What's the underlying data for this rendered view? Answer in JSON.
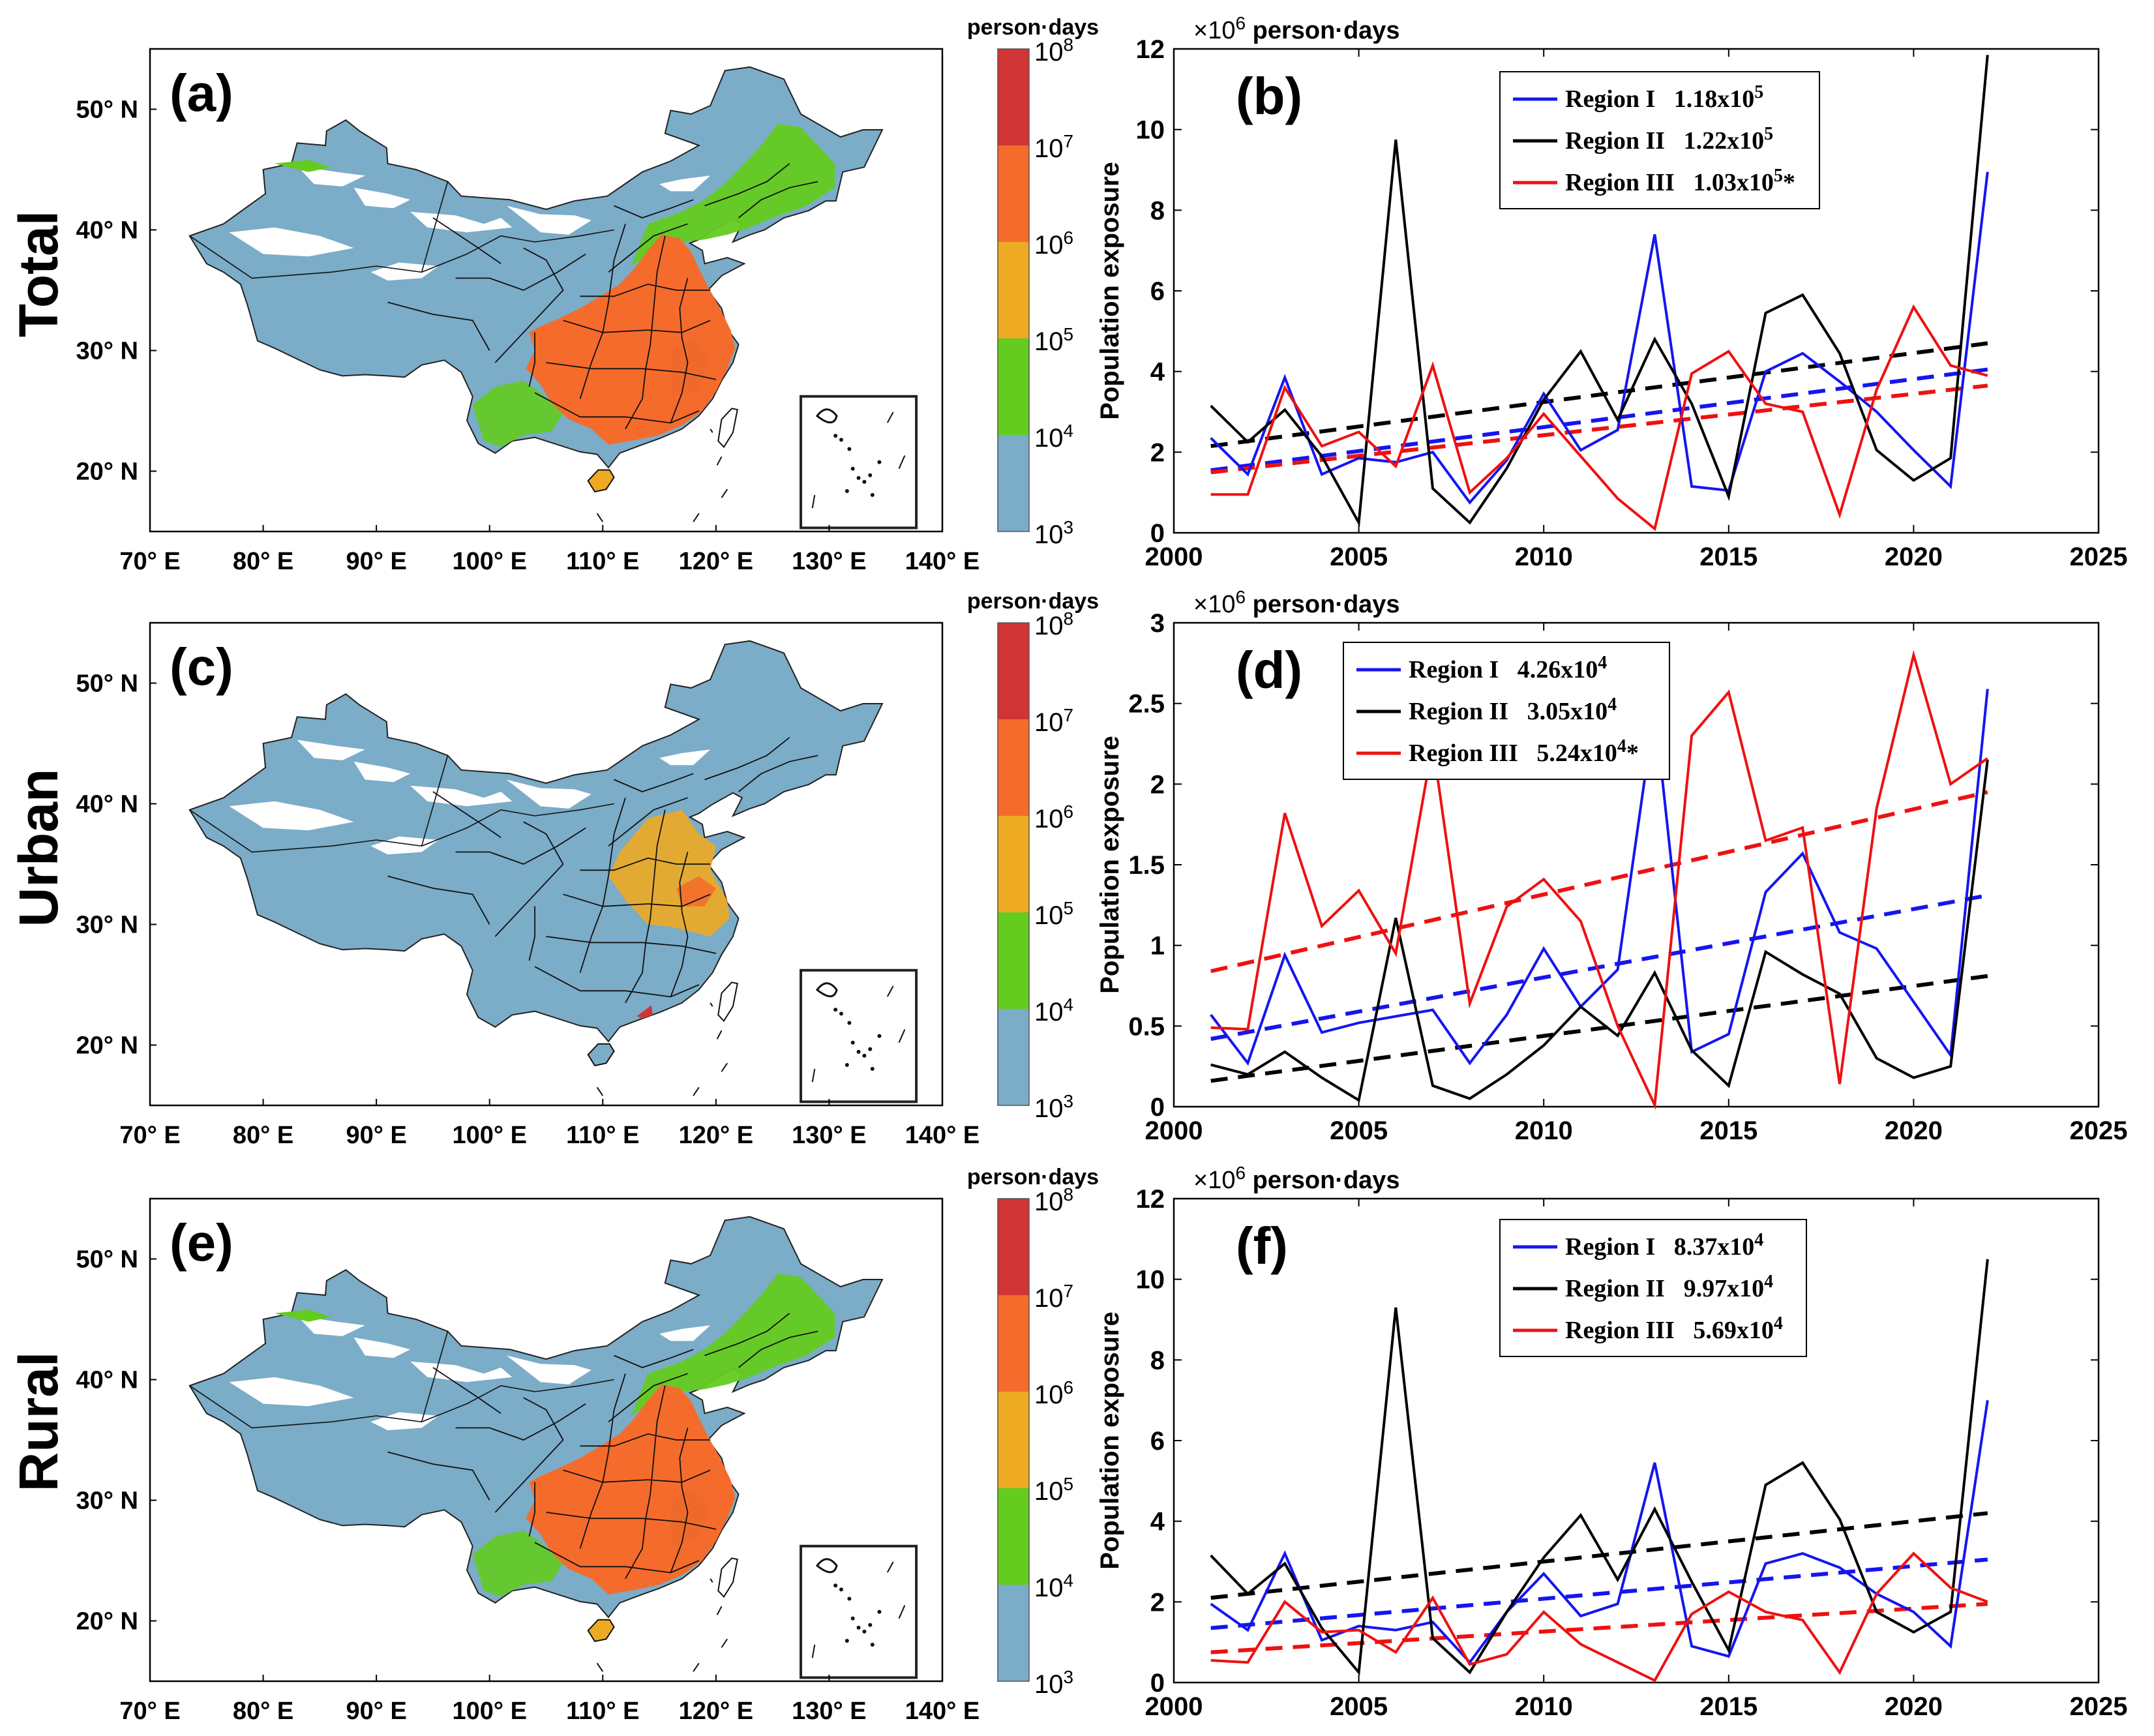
{
  "row_labels": [
    "Total",
    "Urban",
    "Rural"
  ],
  "panel_labels": [
    "(a)",
    "(b)",
    "(c)",
    "(d)",
    "(e)",
    "(f)"
  ],
  "map": {
    "lon_ticks": [
      "70° E",
      "80° E",
      "90° E",
      "100° E",
      "110° E",
      "120° E",
      "130° E",
      "140° E"
    ],
    "lat_ticks": [
      "20° N",
      "30° N",
      "40° N",
      "50° N"
    ],
    "colorbar_title": "person·days",
    "colorbar_exponents": [
      "3",
      "4",
      "5",
      "6",
      "7",
      "8"
    ],
    "colorbar_base": "10",
    "colorbar_colors": [
      "#7bacc8",
      "#64cb1f",
      "#eeaa22",
      "#f56b2b",
      "#d13434"
    ],
    "ocean_inset_label": "South China Sea inset"
  },
  "chart_data": [
    {
      "panel": "(b)",
      "type": "line",
      "ylabel": "Population exposure",
      "multiplier_text": "×10",
      "multiplier_exp": "6",
      "unit_text": "person·days",
      "xlim": [
        2000,
        2025
      ],
      "ylim": [
        0,
        12
      ],
      "xticks": [
        2000,
        2005,
        2010,
        2015,
        2020,
        2025
      ],
      "yticks": [
        0,
        2,
        4,
        6,
        8,
        10,
        12
      ],
      "x": [
        2001,
        2002,
        2003,
        2004,
        2005,
        2006,
        2007,
        2008,
        2009,
        2010,
        2011,
        2012,
        2013,
        2014,
        2015,
        2016,
        2017,
        2018,
        2019,
        2020,
        2021,
        2022
      ],
      "series": [
        {
          "name": "Region I",
          "color": "#1515f0",
          "trend_label": "1.18x10",
          "trend_exp": "5",
          "suffix": "",
          "values": [
            2.35,
            1.45,
            3.85,
            1.45,
            1.85,
            1.75,
            2.0,
            0.75,
            1.8,
            3.45,
            2.05,
            2.55,
            7.4,
            1.15,
            1.05,
            4.0,
            4.45,
            3.75,
            3.0,
            2.05,
            1.15,
            8.95
          ],
          "trend": [
            1.55,
            4.05
          ]
        },
        {
          "name": "Region II",
          "color": "#000000",
          "trend_label": "1.22x10",
          "trend_exp": "5",
          "suffix": "",
          "values": [
            3.15,
            2.25,
            3.05,
            1.9,
            0.25,
            9.75,
            1.1,
            0.25,
            1.6,
            3.3,
            4.5,
            2.8,
            4.8,
            3.2,
            0.9,
            5.45,
            5.9,
            4.45,
            2.05,
            1.3,
            1.85,
            11.85
          ],
          "trend": [
            2.15,
            4.7
          ]
        },
        {
          "name": "Region III",
          "color": "#ee1111",
          "trend_label": "1.03x10",
          "trend_exp": "5",
          "suffix": "*",
          "values": [
            0.95,
            0.95,
            3.6,
            2.15,
            2.5,
            1.65,
            4.15,
            1.0,
            1.85,
            2.95,
            1.9,
            0.85,
            0.1,
            3.95,
            4.5,
            3.2,
            3.0,
            0.45,
            3.55,
            5.6,
            4.15,
            3.9
          ],
          "trend": [
            1.5,
            3.65
          ]
        }
      ]
    },
    {
      "panel": "(d)",
      "type": "line",
      "ylabel": "Population exposure",
      "multiplier_text": "×10",
      "multiplier_exp": "6",
      "unit_text": "person·days",
      "xlim": [
        2000,
        2025
      ],
      "ylim": [
        0,
        3
      ],
      "xticks": [
        2000,
        2005,
        2010,
        2015,
        2020,
        2025
      ],
      "yticks": [
        0,
        0.5,
        1,
        1.5,
        2,
        2.5,
        3
      ],
      "x": [
        2001,
        2002,
        2003,
        2004,
        2005,
        2006,
        2007,
        2008,
        2009,
        2010,
        2011,
        2012,
        2013,
        2014,
        2015,
        2016,
        2017,
        2018,
        2019,
        2020,
        2021,
        2022
      ],
      "series": [
        {
          "name": "Region I",
          "color": "#1515f0",
          "trend_label": "4.26x10",
          "trend_exp": "4",
          "suffix": "",
          "values": [
            0.57,
            0.27,
            0.94,
            0.46,
            0.52,
            0.56,
            0.6,
            0.27,
            0.57,
            0.98,
            0.62,
            0.85,
            2.47,
            0.34,
            0.45,
            1.33,
            1.57,
            1.08,
            0.98,
            0.65,
            0.32,
            2.59
          ],
          "trend": [
            0.42,
            1.31
          ]
        },
        {
          "name": "Region II",
          "color": "#000000",
          "trend_label": "3.05x10",
          "trend_exp": "4",
          "suffix": "",
          "values": [
            0.26,
            0.2,
            0.34,
            0.18,
            0.04,
            1.17,
            0.13,
            0.05,
            0.2,
            0.38,
            0.62,
            0.44,
            0.83,
            0.35,
            0.13,
            0.96,
            0.82,
            0.7,
            0.3,
            0.18,
            0.25,
            2.15
          ],
          "trend": [
            0.16,
            0.81
          ]
        },
        {
          "name": "Region III",
          "color": "#ee1111",
          "trend_label": "5.24x10",
          "trend_exp": "4",
          "suffix": "*",
          "values": [
            0.49,
            0.48,
            1.82,
            1.12,
            1.34,
            0.95,
            2.25,
            0.64,
            1.24,
            1.41,
            1.15,
            0.5,
            0.01,
            2.3,
            2.57,
            1.65,
            1.73,
            0.14,
            1.85,
            2.8,
            2.0,
            2.16
          ],
          "trend": [
            0.84,
            1.95
          ]
        }
      ]
    },
    {
      "panel": "(f)",
      "type": "line",
      "ylabel": "Population exposure",
      "multiplier_text": "×10",
      "multiplier_exp": "6",
      "unit_text": "person·days",
      "xlim": [
        2000,
        2025
      ],
      "ylim": [
        0,
        12
      ],
      "xticks": [
        2000,
        2005,
        2010,
        2015,
        2020,
        2025
      ],
      "yticks": [
        0,
        2,
        4,
        6,
        8,
        10,
        12
      ],
      "x": [
        2001,
        2002,
        2003,
        2004,
        2005,
        2006,
        2007,
        2008,
        2009,
        2010,
        2011,
        2012,
        2013,
        2014,
        2015,
        2016,
        2017,
        2018,
        2019,
        2020,
        2021,
        2022
      ],
      "series": [
        {
          "name": "Region I",
          "color": "#1515f0",
          "trend_label": "8.37x10",
          "trend_exp": "4",
          "suffix": "",
          "values": [
            1.95,
            1.3,
            3.2,
            1.05,
            1.4,
            1.3,
            1.5,
            0.5,
            1.75,
            2.7,
            1.65,
            1.95,
            5.45,
            0.9,
            0.65,
            2.95,
            3.2,
            2.85,
            2.2,
            1.75,
            0.9,
            7.0
          ],
          "trend": [
            1.35,
            3.05
          ]
        },
        {
          "name": "Region II",
          "color": "#000000",
          "trend_label": "9.97x10",
          "trend_exp": "4",
          "suffix": "",
          "values": [
            3.15,
            2.2,
            2.95,
            1.35,
            0.25,
            9.3,
            1.1,
            0.25,
            1.75,
            3.1,
            4.15,
            2.55,
            4.3,
            2.5,
            0.8,
            4.9,
            5.45,
            4.05,
            1.75,
            1.25,
            1.75,
            10.5
          ],
          "trend": [
            2.1,
            4.2
          ]
        },
        {
          "name": "Region III",
          "color": "#ee1111",
          "trend_label": "5.69x10",
          "trend_exp": "4",
          "suffix": "",
          "values": [
            0.55,
            0.5,
            2.0,
            1.25,
            1.3,
            0.75,
            2.1,
            0.45,
            0.7,
            1.75,
            0.95,
            0.5,
            0.05,
            1.7,
            2.25,
            1.75,
            1.55,
            0.25,
            2.2,
            3.2,
            2.35,
            2.0
          ],
          "trend": [
            0.75,
            1.95
          ]
        }
      ]
    }
  ]
}
